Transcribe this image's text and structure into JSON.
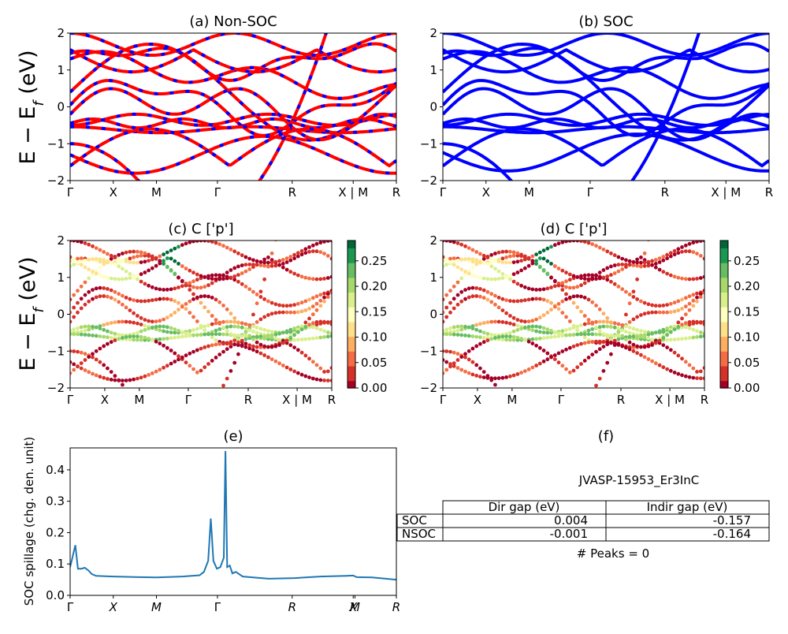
{
  "figure_id": "JVASP-15953_Er3InC",
  "colors": {
    "nonsoc_line": "#ff0000",
    "nonsoc_dash": "#0000ff",
    "soc_line": "#0000ff",
    "spillage_line": "#1f77b4",
    "colormap": [
      "#a50026",
      "#d73027",
      "#f46d43",
      "#fdae61",
      "#fee08b",
      "#ffffbf",
      "#d9ef8b",
      "#a6d96a",
      "#66bd63",
      "#1a9850",
      "#006837"
    ]
  },
  "chart_data": [
    {
      "type": "line",
      "panel": "a",
      "title": "(a) Non-SOC",
      "ylabel": "E − E_f (eV)",
      "ylim": [
        -2,
        2
      ],
      "yticks": [
        "−2",
        "−1",
        "0",
        "1",
        "2"
      ],
      "kpath_labels": [
        "Γ",
        "X",
        "M",
        "Γ",
        "R",
        "X | M",
        "R"
      ],
      "kpath_positions": [
        0,
        0.5,
        1.0,
        1.707,
        2.573,
        3.28,
        3.78
      ]
    },
    {
      "type": "line",
      "panel": "b",
      "title": "(b) SOC",
      "ylim": [
        -2,
        2
      ],
      "yticks": [
        "−2",
        "−1",
        "0",
        "1",
        "2"
      ],
      "kpath_labels": [
        "Γ",
        "X",
        "M",
        "Γ",
        "R",
        "X | M",
        "R"
      ],
      "kpath_positions": [
        0,
        0.5,
        1.0,
        1.707,
        2.573,
        3.28,
        3.78
      ]
    },
    {
      "type": "scatter",
      "panel": "c",
      "title": "(c)  C ['p']",
      "ylabel": "E − E_f (eV)",
      "ylim": [
        -2,
        2
      ],
      "yticks": [
        "−2",
        "−1",
        "0",
        "1",
        "2"
      ],
      "kpath_labels": [
        "Γ",
        "X",
        "M",
        "Γ",
        "R",
        "X | M",
        "R"
      ],
      "kpath_positions": [
        0,
        0.5,
        1.0,
        1.707,
        2.573,
        3.28,
        3.78
      ],
      "colorbar_range": [
        0,
        0.29
      ],
      "colorbar_ticks": [
        "0.00",
        "0.05",
        "0.10",
        "0.15",
        "0.20",
        "0.25"
      ]
    },
    {
      "type": "scatter",
      "panel": "d",
      "title": "(d) C ['p']",
      "ylim": [
        -2,
        2
      ],
      "yticks": [
        "−2",
        "−1",
        "0",
        "1",
        "2"
      ],
      "kpath_labels": [
        "Γ",
        "X",
        "M",
        "Γ",
        "R",
        "X | M",
        "R"
      ],
      "kpath_positions": [
        0,
        0.5,
        1.0,
        1.707,
        2.573,
        3.28,
        3.78
      ],
      "colorbar_range": [
        0,
        0.29
      ],
      "colorbar_ticks": [
        "0.00",
        "0.05",
        "0.10",
        "0.15",
        "0.20",
        "0.25"
      ]
    },
    {
      "type": "line",
      "panel": "e",
      "title": "(e)",
      "ylabel": "SOC spillage (chg. den. unit)",
      "ylim": [
        0,
        0.47
      ],
      "yticks": [
        "0.0",
        "0.1",
        "0.2",
        "0.3",
        "0.4"
      ],
      "kpath_labels": [
        "Γ",
        "X",
        "M",
        "Γ",
        "R",
        "X",
        "M",
        "R"
      ],
      "kpath_positions": [
        0,
        0.5,
        1.0,
        1.707,
        2.573,
        3.28,
        3.3,
        3.78
      ],
      "x": [
        0,
        0.03,
        0.06,
        0.09,
        0.13,
        0.17,
        0.21,
        0.25,
        0.3,
        0.5,
        0.8,
        1.0,
        1.3,
        1.5,
        1.55,
        1.6,
        1.63,
        1.66,
        1.7,
        1.74,
        1.78,
        1.8,
        1.82,
        1.85,
        1.88,
        1.92,
        2.0,
        2.3,
        2.6,
        2.9,
        3.2,
        3.28,
        3.32,
        3.5,
        3.78
      ],
      "y": [
        0.09,
        0.125,
        0.16,
        0.085,
        0.085,
        0.088,
        0.08,
        0.068,
        0.062,
        0.06,
        0.058,
        0.057,
        0.06,
        0.064,
        0.075,
        0.11,
        0.245,
        0.11,
        0.085,
        0.09,
        0.12,
        0.46,
        0.09,
        0.095,
        0.07,
        0.075,
        0.06,
        0.053,
        0.055,
        0.06,
        0.062,
        0.063,
        0.058,
        0.057,
        0.05
      ]
    }
  ],
  "panel_f": {
    "title": "(f)",
    "material": "JVASP-15953_Er3InC",
    "table": {
      "headers": [
        "",
        "Dir gap (eV)",
        "Indir gap (eV)"
      ],
      "rows": [
        {
          "label": "SOC",
          "dir": "0.004",
          "indir": "-0.157"
        },
        {
          "label": "NSOC",
          "dir": "-0.001",
          "indir": "-0.164"
        }
      ]
    },
    "peaks": "# Peaks = 0"
  }
}
